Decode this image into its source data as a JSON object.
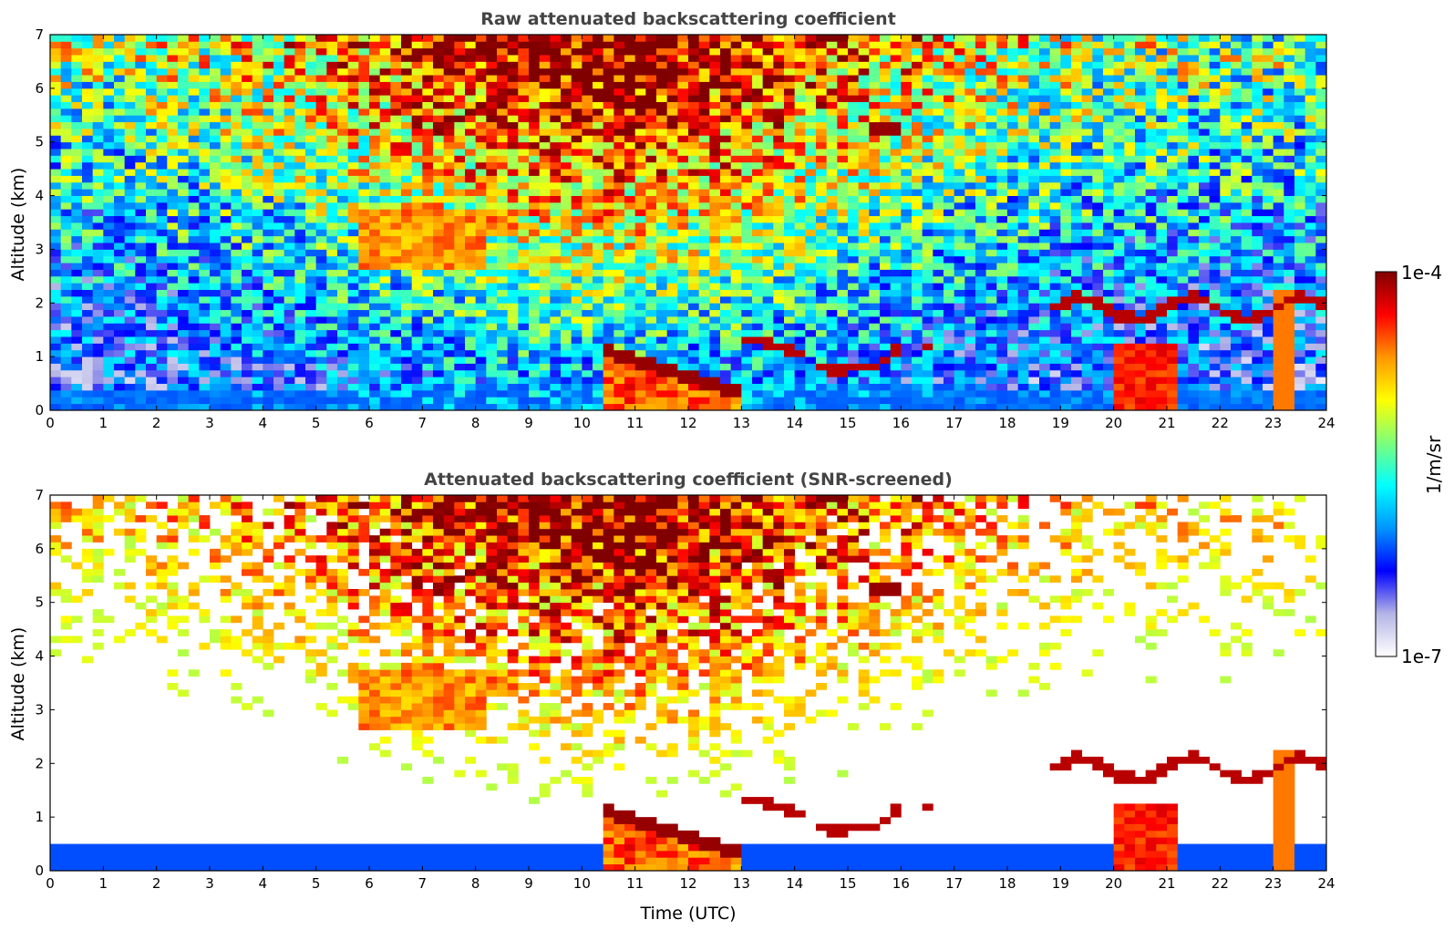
{
  "chart_data": [
    {
      "type": "heatmap",
      "title": "Raw attenuated backscattering coefficient",
      "xlabel": "",
      "ylabel": "Altitude (km)",
      "xlim": [
        0,
        24
      ],
      "ylim": [
        0,
        7
      ],
      "xticks": [
        "0",
        "1",
        "2",
        "3",
        "4",
        "5",
        "6",
        "7",
        "8",
        "9",
        "10",
        "11",
        "12",
        "13",
        "14",
        "15",
        "16",
        "17",
        "18",
        "19",
        "20",
        "21",
        "22",
        "23",
        "24"
      ],
      "yticks": [
        "0",
        "1",
        "2",
        "3",
        "4",
        "5",
        "6",
        "7"
      ],
      "screened": false,
      "features": [
        {
          "kind": "aerosol_layer",
          "time_range": [
            0,
            24
          ],
          "top_km": 0.5
        },
        {
          "kind": "cirrus_fallstreaks",
          "time_range": [
            5.5,
            8.2
          ],
          "altitude_km": [
            2.6,
            4.0
          ]
        },
        {
          "kind": "cloud_layer",
          "time_range": [
            10.4,
            13.0
          ],
          "altitude_km": [
            0.3,
            1.2
          ]
        },
        {
          "kind": "cloud_layer",
          "time_range": [
            13.0,
            16.5
          ],
          "altitude_km": [
            0.8,
            1.8
          ]
        },
        {
          "kind": "cloud_layer",
          "time_range": [
            18.8,
            24.0
          ],
          "altitude_km": [
            0.5,
            2.3
          ]
        },
        {
          "kind": "high_cloud_fragments",
          "time_range": [
            13.7,
            16.0
          ],
          "altitude_km": [
            5.1,
            6.5
          ]
        }
      ]
    },
    {
      "type": "heatmap",
      "title": "Attenuated backscattering coefficient (SNR-screened)",
      "xlabel": "Time (UTC)",
      "ylabel": "Altitude (km)",
      "xlim": [
        0,
        24
      ],
      "ylim": [
        0,
        7
      ],
      "xticks": [
        "0",
        "1",
        "2",
        "3",
        "4",
        "5",
        "6",
        "7",
        "8",
        "9",
        "10",
        "11",
        "12",
        "13",
        "14",
        "15",
        "16",
        "17",
        "18",
        "19",
        "20",
        "21",
        "22",
        "23",
        "24"
      ],
      "yticks": [
        "0",
        "1",
        "2",
        "3",
        "4",
        "5",
        "6",
        "7"
      ],
      "screened": true
    }
  ],
  "colorbar": {
    "label": "1/m/sr",
    "max_label": "1e-4",
    "min_label": "1e-7",
    "scale": "log",
    "range": [
      1e-07,
      0.0001
    ],
    "colormap": "jet",
    "stops": [
      "#ffffff",
      "#b4b4e6",
      "#0000ff",
      "#0096ff",
      "#00ffff",
      "#7dff7a",
      "#ffff00",
      "#ff9600",
      "#ff0000",
      "#800000"
    ]
  }
}
